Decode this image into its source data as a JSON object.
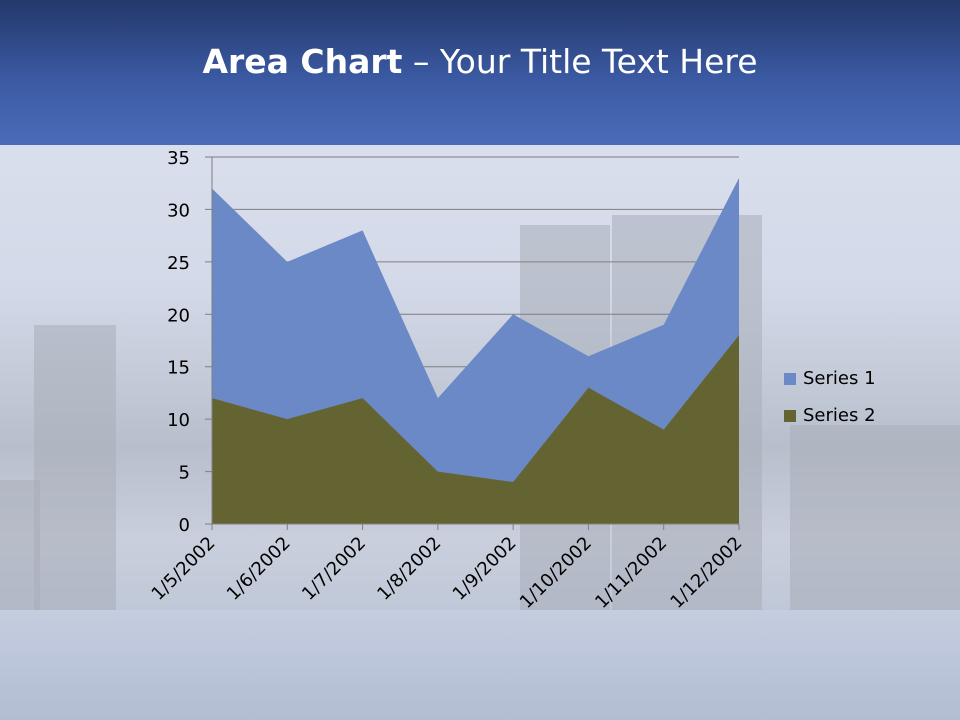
{
  "slide": {
    "title_bold": "Area Chart",
    "title_rest": " – Your Title Text Here"
  },
  "chart_data": {
    "type": "area",
    "categories": [
      "1/5/2002",
      "1/6/2002",
      "1/7/2002",
      "1/8/2002",
      "1/9/2002",
      "1/10/2002",
      "1/11/2002",
      "1/12/2002"
    ],
    "series": [
      {
        "name": "Series 1",
        "values": [
          32,
          25,
          28,
          12,
          20,
          16,
          19,
          33
        ],
        "color": "#6b89c6"
      },
      {
        "name": "Series 2",
        "values": [
          12,
          10,
          12,
          5,
          4,
          13,
          9,
          18
        ],
        "color": "#646433"
      }
    ],
    "yticks": [
      "0",
      "5",
      "10",
      "15",
      "20",
      "25",
      "30",
      "35"
    ],
    "ylim": [
      0,
      35
    ],
    "grid": true,
    "legend": "right"
  }
}
